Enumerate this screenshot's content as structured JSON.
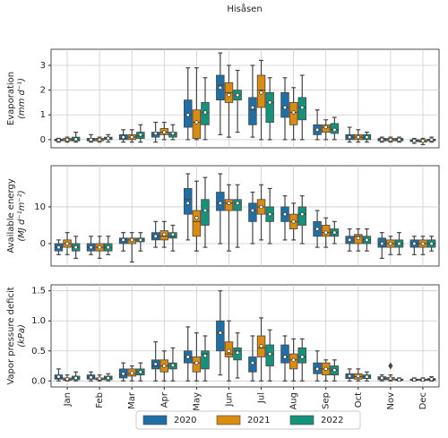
{
  "title": "Hisåsen",
  "chart_data": [
    {
      "type": "box",
      "ylabel": [
        "Evaporation",
        "(mm d⁻¹)"
      ],
      "ylim": [
        -0.33,
        3.65
      ],
      "yticks": [
        0,
        1,
        2,
        3
      ],
      "grid": true,
      "series": [
        {
          "color": "#1f6fa6",
          "low": [
            -0.1,
            -0.1,
            -0.1,
            -0.1,
            0,
            0.2,
            0.1,
            0,
            0,
            -0.1,
            -0.1,
            -0.15
          ],
          "q1": [
            -0.05,
            -0.05,
            0,
            0.1,
            0.5,
            1.6,
            0.6,
            0.9,
            0.2,
            0,
            -0.05,
            -0.08
          ],
          "median": [
            -0.02,
            0,
            0.05,
            0.2,
            1.0,
            2.2,
            1.2,
            1.3,
            0.4,
            0.1,
            0,
            -0.05
          ],
          "q3": [
            0.02,
            0.05,
            0.2,
            0.3,
            1.6,
            2.6,
            1.7,
            1.9,
            0.6,
            0.2,
            0.05,
            0
          ],
          "high": [
            0.05,
            0.2,
            0.4,
            0.7,
            2.9,
            3.5,
            3.0,
            2.5,
            1.2,
            0.5,
            0.1,
            0.05
          ],
          "mean": [
            -0.02,
            0,
            0.1,
            0.25,
            1.0,
            2.1,
            1.3,
            1.3,
            0.4,
            0.1,
            0,
            -0.05
          ]
        },
        {
          "color": "#d98c0f",
          "low": [
            -0.1,
            -0.1,
            -0.1,
            0,
            0,
            0.1,
            0,
            0,
            0,
            -0.1,
            -0.1,
            -0.2
          ],
          "q1": [
            -0.05,
            -0.05,
            0,
            0.2,
            0.05,
            1.5,
            1.3,
            0.6,
            0.3,
            0,
            -0.05,
            -0.1
          ],
          "median": [
            0,
            0,
            0.1,
            0.3,
            0.7,
            1.9,
            2.0,
            1.1,
            0.5,
            0.1,
            0,
            -0.05
          ],
          "q3": [
            0.05,
            0.05,
            0.2,
            0.45,
            1.2,
            2.3,
            2.6,
            1.5,
            0.6,
            0.2,
            0.05,
            0
          ],
          "high": [
            0.1,
            0.1,
            0.4,
            0.7,
            2.9,
            3.0,
            3.2,
            2.1,
            0.8,
            0.4,
            0.1,
            0.05
          ],
          "mean": [
            0,
            0,
            0.1,
            0.3,
            0.7,
            1.8,
            1.9,
            1.1,
            0.5,
            0.1,
            0,
            -0.05
          ]
        },
        {
          "color": "#15937a",
          "low": [
            -0.1,
            -0.1,
            -0.1,
            0,
            0,
            0.3,
            0,
            0,
            0,
            -0.1,
            -0.1,
            -0.1
          ],
          "q1": [
            -0.05,
            0,
            0.05,
            0.1,
            0.6,
            1.6,
            0.7,
            0.8,
            0.25,
            0,
            -0.05,
            -0.05
          ],
          "median": [
            0,
            0.05,
            0.15,
            0.2,
            1.1,
            1.8,
            1.5,
            1.3,
            0.4,
            0.1,
            0,
            0
          ],
          "q3": [
            0.1,
            0.1,
            0.3,
            0.3,
            1.5,
            2.0,
            1.9,
            1.7,
            0.65,
            0.2,
            0.05,
            0.02
          ],
          "high": [
            0.3,
            0.2,
            0.6,
            0.6,
            2.5,
            2.8,
            2.5,
            2.6,
            0.9,
            0.3,
            0.1,
            0.1
          ],
          "mean": [
            0.02,
            0.05,
            0.2,
            0.25,
            1.1,
            1.8,
            1.5,
            1.3,
            0.4,
            0.1,
            0,
            0
          ]
        }
      ]
    },
    {
      "type": "box",
      "ylabel": [
        "Available energy",
        "(MJ d⁻¹m⁻²)"
      ],
      "ylim": [
        -6.1,
        21.2
      ],
      "yticks": [
        0,
        10
      ],
      "grid": true,
      "series": [
        {
          "color": "#1f6fa6",
          "low": [
            -3,
            -3,
            -2,
            -1,
            1,
            0,
            0,
            1,
            -1,
            -2,
            -4,
            -3
          ],
          "q1": [
            -2,
            -2,
            0,
            1,
            8,
            9,
            6,
            6,
            2,
            0,
            -1,
            -1
          ],
          "median": [
            -1,
            -1,
            1,
            2,
            12,
            11,
            9,
            8,
            4,
            1,
            0,
            0
          ],
          "q3": [
            0,
            0,
            1.5,
            3,
            15,
            14,
            11,
            10,
            6,
            2,
            1.5,
            1
          ],
          "high": [
            1,
            2,
            3,
            6,
            19,
            19,
            14,
            13,
            9,
            4,
            3,
            2
          ],
          "mean": [
            -1,
            -1,
            1,
            2,
            11,
            11,
            9,
            8,
            4,
            1,
            0,
            0
          ]
        },
        {
          "color": "#d98c0f",
          "low": [
            -3,
            -4,
            -5,
            -1,
            -2,
            -2,
            1,
            1,
            -1,
            -2,
            -3,
            -3
          ],
          "q1": [
            -1,
            -2,
            0,
            1,
            2,
            9,
            8,
            4,
            2,
            0,
            -1,
            -1
          ],
          "median": [
            0,
            -1,
            1,
            2,
            6,
            11,
            10,
            6,
            3,
            2,
            0,
            0
          ],
          "q3": [
            1,
            0,
            1.5,
            3.5,
            9,
            12,
            12,
            8,
            5,
            2.5,
            1,
            1
          ],
          "high": [
            3,
            2,
            3,
            6,
            17,
            16,
            16,
            11,
            7,
            4,
            2,
            2
          ],
          "mean": [
            0,
            -1,
            1,
            2.5,
            7,
            11,
            10,
            6,
            3,
            1.5,
            0,
            0
          ]
        },
        {
          "color": "#15937a",
          "low": [
            -4,
            -3,
            -2,
            -2,
            -1,
            -1,
            0,
            0,
            0,
            -2,
            -3,
            -2
          ],
          "q1": [
            -2,
            -2,
            0.5,
            1.5,
            5,
            9,
            6,
            5,
            2,
            0,
            -1,
            -1
          ],
          "median": [
            -1,
            -1,
            1,
            2,
            9,
            11,
            8,
            8,
            3,
            1,
            0,
            0
          ],
          "q3": [
            0,
            0,
            1.5,
            3,
            12,
            12,
            10,
            10,
            4,
            2,
            1,
            1
          ],
          "high": [
            2,
            2,
            3,
            5,
            18,
            16,
            15,
            13,
            6,
            4,
            3,
            2
          ],
          "mean": [
            -1,
            -1,
            1,
            2.5,
            9,
            11,
            8,
            8,
            3,
            1,
            0,
            0
          ]
        }
      ]
    },
    {
      "type": "box",
      "ylabel": [
        "Vapor pressure deficit",
        "(kPa)"
      ],
      "ylim": [
        -0.1,
        1.6
      ],
      "yticks": [
        {
          "value": 0,
          "label": "0.0"
        },
        0.5,
        {
          "value": 1,
          "label": "1.0"
        },
        1.5
      ],
      "grid": true,
      "categories": [
        "Jan",
        "Feb",
        "Mar",
        "Apr",
        "May",
        "Jun",
        "Jul",
        "Aug",
        "Sep",
        "Oct",
        "Nov",
        "Dec"
      ],
      "series": [
        {
          "name": "2020",
          "color": "#1f6fa6",
          "low": [
            0,
            0,
            0,
            0,
            0,
            0.1,
            0,
            0,
            0,
            0,
            0,
            0
          ],
          "q1": [
            0.03,
            0.03,
            0.05,
            0.2,
            0.3,
            0.5,
            0.15,
            0.3,
            0.12,
            0.04,
            0.02,
            0.01
          ],
          "median": [
            0.05,
            0.06,
            0.1,
            0.25,
            0.4,
            0.8,
            0.3,
            0.4,
            0.2,
            0.08,
            0.04,
            0.02
          ],
          "q3": [
            0.1,
            0.1,
            0.2,
            0.35,
            0.5,
            1.0,
            0.4,
            0.6,
            0.3,
            0.12,
            0.07,
            0.03
          ],
          "high": [
            0.2,
            0.15,
            0.3,
            0.65,
            0.9,
            1.5,
            0.75,
            0.75,
            0.5,
            0.2,
            0.1,
            0.05
          ],
          "mean": [
            0.07,
            0.06,
            0.12,
            0.28,
            0.4,
            0.8,
            0.3,
            0.4,
            0.2,
            0.08,
            0.05,
            0.02
          ]
        },
        {
          "name": "2021",
          "color": "#d98c0f",
          "low": [
            0,
            0,
            0,
            0,
            0,
            0,
            0,
            0,
            0,
            0,
            0,
            0
          ],
          "q1": [
            0.01,
            0.02,
            0.08,
            0.15,
            0.15,
            0.4,
            0.4,
            0.2,
            0.1,
            0.03,
            0.02,
            0.01
          ],
          "median": [
            0.03,
            0.03,
            0.12,
            0.25,
            0.3,
            0.45,
            0.55,
            0.35,
            0.2,
            0.07,
            0.03,
            0.02
          ],
          "q3": [
            0.05,
            0.05,
            0.2,
            0.35,
            0.4,
            0.65,
            0.75,
            0.45,
            0.3,
            0.12,
            0.06,
            0.03
          ],
          "high": [
            0.1,
            0.1,
            0.25,
            0.5,
            0.8,
            1.0,
            1.05,
            0.7,
            0.35,
            0.2,
            0.1,
            0.05
          ],
          "mean": [
            0.03,
            0.04,
            0.13,
            0.25,
            0.3,
            0.5,
            0.58,
            0.35,
            0.2,
            0.08,
            0.04,
            0.02
          ],
          "outliers": [
            [],
            [],
            [],
            [],
            [],
            [],
            [],
            [],
            [],
            [],
            [
              0.25
            ],
            []
          ]
        },
        {
          "name": "2022",
          "color": "#15937a",
          "low": [
            0,
            0,
            0,
            0,
            0,
            0.05,
            0,
            0,
            0,
            0,
            0,
            0
          ],
          "q1": [
            0.02,
            0.02,
            0.1,
            0.2,
            0.2,
            0.35,
            0.25,
            0.3,
            0.1,
            0.04,
            0.01,
            0.01
          ],
          "median": [
            0.05,
            0.05,
            0.15,
            0.25,
            0.45,
            0.5,
            0.45,
            0.4,
            0.18,
            0.07,
            0.02,
            0.03
          ],
          "q3": [
            0.08,
            0.08,
            0.2,
            0.3,
            0.5,
            0.55,
            0.6,
            0.55,
            0.25,
            0.1,
            0.03,
            0.04
          ],
          "high": [
            0.15,
            0.12,
            0.3,
            0.55,
            0.75,
            0.8,
            0.85,
            0.7,
            0.35,
            0.15,
            0.05,
            0.07
          ],
          "mean": [
            0.05,
            0.05,
            0.15,
            0.26,
            0.42,
            0.47,
            0.45,
            0.4,
            0.18,
            0.07,
            0.02,
            0.03
          ]
        }
      ]
    }
  ]
}
